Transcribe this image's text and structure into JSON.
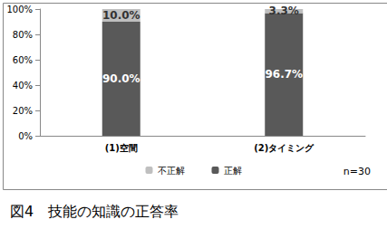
{
  "chart_data": {
    "type": "bar",
    "title": "図4　技能の知識の正答率",
    "annotations": [
      "n=30"
    ],
    "categories": [
      "(1)空間",
      "(2)タイミング"
    ],
    "series": [
      {
        "name": "不正解",
        "color": "#bfbfbf",
        "values": [
          10.0,
          3.3
        ],
        "value_labels": [
          "10.0%",
          "3.3%"
        ]
      },
      {
        "name": "正解",
        "color": "#595959",
        "values": [
          90.0,
          96.7
        ],
        "value_labels": [
          "90.0%",
          "96.7%"
        ]
      }
    ],
    "stacked": true,
    "data_labels": true,
    "ylim": [
      0,
      100
    ],
    "yticks": [
      {
        "value": 0,
        "label": "0%"
      },
      {
        "value": 20,
        "label": "20%"
      },
      {
        "value": 40,
        "label": "40%"
      },
      {
        "value": 60,
        "label": "60%"
      },
      {
        "value": 80,
        "label": "80%"
      },
      {
        "value": 100,
        "label": "100%"
      }
    ],
    "grid": false,
    "legend": "bottom"
  }
}
